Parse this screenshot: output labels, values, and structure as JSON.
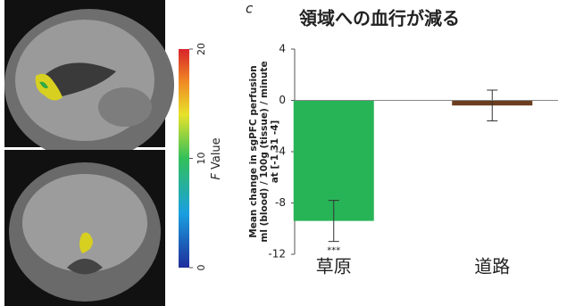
{
  "panel_letter": "c",
  "colorbar": {
    "label_prefix": "F",
    "label": "Value",
    "clim": [
      0,
      20
    ],
    "ticks": [
      0,
      10,
      20
    ]
  },
  "chart_data": {
    "type": "bar",
    "title": "領域への血行が減る",
    "ylabel": [
      "Mean change in sgPFC perfusion",
      "ml (blood) / 100g (tissue) / minute",
      "at [-1 31 -4]"
    ],
    "categories": [
      "草原",
      "道路"
    ],
    "values": [
      -9.4,
      -0.4
    ],
    "errors": [
      1.6,
      1.2
    ],
    "colors": [
      "#27b457",
      "#6b3d1e"
    ],
    "annotation": "***",
    "ylim": [
      -12,
      4
    ],
    "yticks": [
      -12,
      -8,
      -4,
      0,
      4
    ]
  }
}
